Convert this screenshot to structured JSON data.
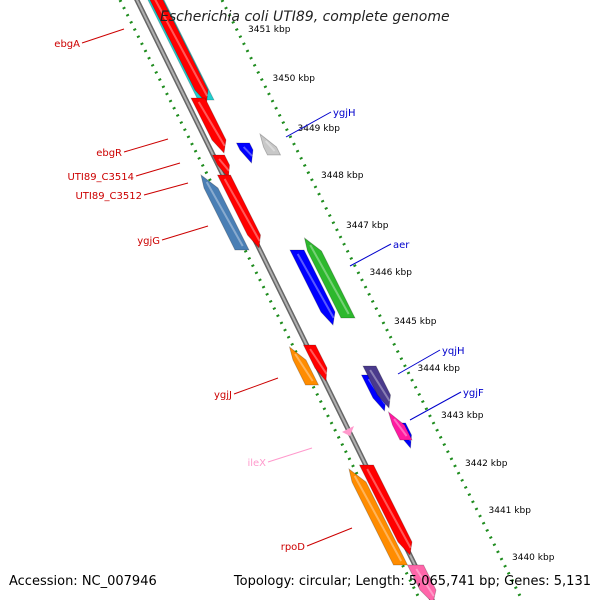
{
  "header": {
    "title": "Escherichia coli UTI89, complete genome",
    "accession": "Accession: NC_007946",
    "stats": "Topology: circular; Length: 5,065,741 bp; Genes: 5,131"
  },
  "colors": {
    "backbone": "#8c8c8c",
    "tick": "#1e8c1e",
    "label_forward": "#0000cc",
    "label_reverse": "#cc0000",
    "label_rna": "#ff99cc"
  },
  "ruler": [
    {
      "label": "3451 kbp"
    },
    {
      "label": "3450 kbp"
    },
    {
      "label": "3449 kbp"
    },
    {
      "label": "3448 kbp"
    },
    {
      "label": "3447 kbp"
    },
    {
      "label": "3446 kbp"
    },
    {
      "label": "3445 kbp"
    },
    {
      "label": "3444 kbp"
    },
    {
      "label": "3443 kbp"
    },
    {
      "label": "3442 kbp"
    },
    {
      "label": "3441 kbp"
    },
    {
      "label": "3440 kbp"
    }
  ],
  "gene_labels": [
    {
      "name": "ebgA",
      "strand": "reverse"
    },
    {
      "name": "ebgR",
      "strand": "reverse"
    },
    {
      "name": "UTI89_C3514",
      "strand": "reverse"
    },
    {
      "name": "UTI89_C3512",
      "strand": "reverse"
    },
    {
      "name": "ygjG",
      "strand": "reverse"
    },
    {
      "name": "ygjJ",
      "strand": "reverse"
    },
    {
      "name": "ileX",
      "strand": "rna"
    },
    {
      "name": "rpoD",
      "strand": "reverse"
    },
    {
      "name": "ygjH",
      "strand": "forward"
    },
    {
      "name": "aer",
      "strand": "forward"
    },
    {
      "name": "yqjH",
      "strand": "forward"
    },
    {
      "name": "ygjF",
      "strand": "forward"
    }
  ]
}
